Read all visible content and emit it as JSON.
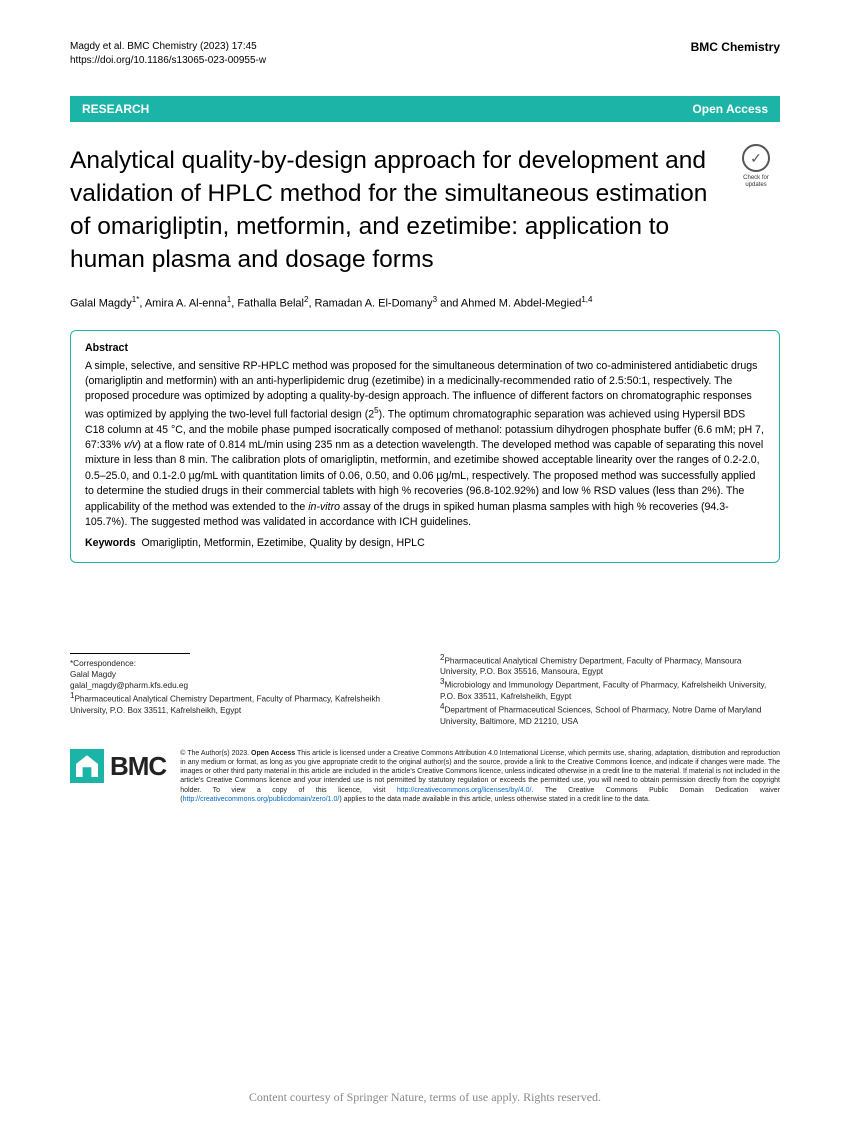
{
  "header": {
    "citation": "Magdy et al. BMC Chemistry        (2023) 17:45",
    "doi": "https://doi.org/10.1186/s13065-023-00955-w",
    "journal": "BMC Chemistry"
  },
  "banner": {
    "category": "RESEARCH",
    "access": "Open Access"
  },
  "title": "Analytical quality-by-design approach for development and validation of HPLC method for the simultaneous estimation of omarigliptin, metformin, and ezetimibe: application to human plasma and dosage forms",
  "check_updates": "Check for updates",
  "authors_html": "Galal Magdy<span class='sup'>1*</span>, Amira A. Al-enna<span class='sup'>1</span>, Fathalla Belal<span class='sup'>2</span>, Ramadan A. El-Domany<span class='sup'>3</span> and Ahmed M. Abdel-Megied<span class='sup'>1,4</span>",
  "abstract": {
    "label": "Abstract",
    "body_html": "A simple, selective, and sensitive RP-HPLC method was proposed for the simultaneous determination of two co-administered antidiabetic drugs (omarigliptin and metformin) with an anti-hyperlipidemic drug (ezetimibe) in a medicinally-recommended ratio of 2.5:50:1, respectively. The proposed procedure was optimized by adopting a quality-by-design approach. The influence of different factors on chromatographic responses was optimized by applying the two-level full factorial design (2<span class='sup'>5</span>). The optimum chromatographic separation was achieved using Hypersil BDS C18 column at 45 °C, and the mobile phase pumped isocratically composed of methanol: potassium dihydrogen phosphate buffer (6.6 mM; pH 7, 67:33% <span class='italic'>v/v</span>) at a flow rate of 0.814 mL/min using 235 nm as a detection wavelength. The developed method was capable of separating this novel mixture in less than 8 min. The calibration plots of omarigliptin, metformin, and ezetimibe showed acceptable linearity over the ranges of 0.2-2.0, 0.5–25.0, and 0.1-2.0 µg/mL with quantitation limits of 0.06, 0.50, and 0.06 µg/mL, respectively. The proposed method was successfully applied to determine the studied drugs in their commercial tablets with high % recoveries (96.8-102.92%) and low % RSD values (less than 2%). The applicability of the method was extended to the <span class='italic'>in-vitro</span> assay of the drugs in spiked human plasma samples with high % recoveries (94.3-105.7%). The suggested method was validated in accordance with ICH guidelines.",
    "keywords_label": "Keywords",
    "keywords": "Omarigliptin, Metformin, Ezetimibe, Quality by design, HPLC"
  },
  "affiliations": {
    "left_html": "*Correspondence:<br>Galal Magdy<br>galal_magdy@pharm.kfs.edu.eg<br><span class='sup'>1</span>Pharmaceutical Analytical Chemistry Department, Faculty of Pharmacy, Kafrelsheikh University, P.O. Box 33511, Kafrelsheikh, Egypt",
    "right_html": "<span class='sup'>2</span>Pharmaceutical Analytical Chemistry Department, Faculty of Pharmacy, Mansoura University, P.O. Box 35516, Mansoura, Egypt<br><span class='sup'>3</span>Microbiology and Immunology Department, Faculty of Pharmacy, Kafrelsheikh University, P.O. Box 33511, Kafrelsheikh, Egypt<br><span class='sup'>4</span>Department of Pharmaceutical Sciences, School of Pharmacy, Notre Dame of Maryland University, Baltimore, MD 21210, USA"
  },
  "logo": "BMC",
  "license_html": "© The Author(s) 2023. <b>Open Access</b> This article is licensed under a Creative Commons Attribution 4.0 International License, which permits use, sharing, adaptation, distribution and reproduction in any medium or format, as long as you give appropriate credit to the original author(s) and the source, provide a link to the Creative Commons licence, and indicate if changes were made. The images or other third party material in this article are included in the article's Creative Commons licence, unless indicated otherwise in a credit line to the material. If material is not included in the article's Creative Commons licence and your intended use is not permitted by statutory regulation or exceeds the permitted use, you will need to obtain permission directly from the copyright holder. To view a copy of this licence, visit <a href='#'>http://creativecommons.org/licenses/by/4.0/</a>. The Creative Commons Public Domain Dedication waiver (<a href='#'>http://creativecommons.org/publicdomain/zero/1.0/</a>) applies to the data made available in this article, unless otherwise stated in a credit line to the data.",
  "bottom_note": "Content courtesy of Springer Nature, terms of use apply. Rights reserved.",
  "colors": {
    "banner_bg": "#1db4a8",
    "banner_text": "#ffffff",
    "abstract_border": "#1db4a8",
    "link": "#0066cc",
    "bottom_text": "#888888"
  }
}
